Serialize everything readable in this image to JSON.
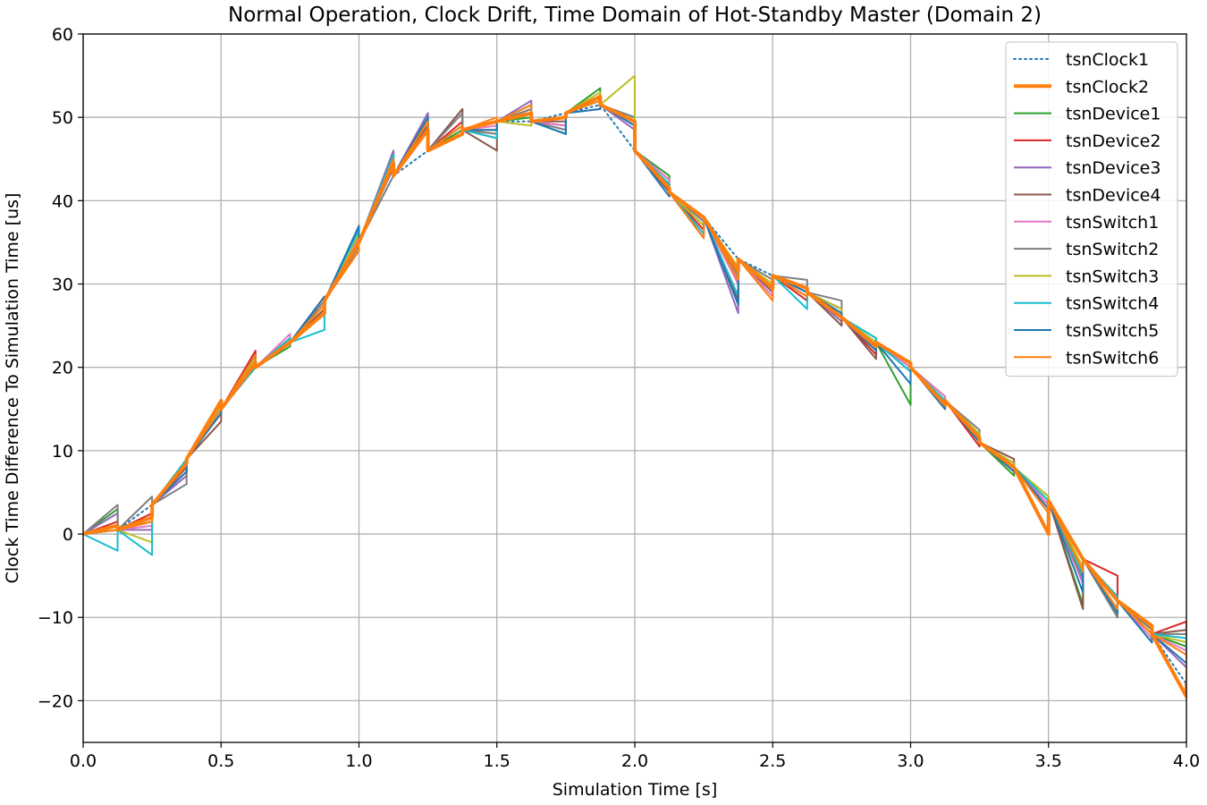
{
  "chart_data": {
    "type": "line",
    "title": "Normal Operation, Clock Drift, Time Domain of Hot-Standby Master (Domain 2)",
    "xlabel": "Simulation Time [s]",
    "ylabel": "Clock Time Difference To Simulation Time [us]",
    "xlim": [
      0.0,
      4.0
    ],
    "ylim": [
      -25,
      60
    ],
    "xticks": [
      "0.0",
      "0.5",
      "1.0",
      "1.5",
      "2.0",
      "2.5",
      "3.0",
      "3.5",
      "4.0"
    ],
    "yticks": [
      "−20",
      "−10",
      "0",
      "10",
      "20",
      "30",
      "40",
      "50",
      "60"
    ],
    "grid": true,
    "legend_position": "top-right",
    "baseline": {
      "x": [
        0.0,
        0.125,
        0.25,
        0.375,
        0.5,
        0.625,
        0.75,
        0.875,
        1.0,
        1.125,
        1.25,
        1.375,
        1.5,
        1.625,
        1.75,
        1.875,
        2.0,
        2.125,
        2.25,
        2.375,
        2.5,
        2.625,
        2.75,
        2.875,
        3.0,
        3.125,
        3.25,
        3.375,
        3.5,
        3.625,
        3.75,
        3.875,
        4.0
      ],
      "y": [
        0,
        0.5,
        3.5,
        9,
        15,
        20,
        23,
        28,
        35,
        43,
        46,
        48.5,
        49.5,
        49.5,
        50.5,
        51.5,
        46,
        41,
        38,
        33,
        31,
        29,
        26,
        23,
        20,
        16,
        11,
        8,
        4,
        -3,
        -8,
        -12,
        -18
      ]
    },
    "series": [
      {
        "name": "tsnClock1",
        "color": "#1f77b4",
        "style": "dotted",
        "width": 2.0,
        "y": [
          0,
          0.5,
          3.5,
          9,
          15,
          20,
          23,
          28,
          35,
          43,
          46,
          48.5,
          49.5,
          49.5,
          50.5,
          51.5,
          46,
          41,
          38,
          33,
          31,
          29,
          26,
          23,
          20,
          16,
          11,
          8,
          4,
          -3,
          -8,
          -12,
          -18
        ]
      },
      {
        "name": "tsnClock2",
        "color": "#ff7f0e",
        "style": "solid",
        "width": 4.0,
        "y": [
          0,
          1.0,
          2.0,
          8.5,
          16.0,
          20.5,
          23.0,
          26.5,
          35.0,
          44.5,
          48.5,
          48.0,
          49.5,
          50.5,
          50.0,
          52.5,
          49.5,
          41.5,
          38.0,
          31.5,
          29.5,
          29.5,
          26.0,
          22.5,
          20.5,
          15.5,
          11.5,
          8.0,
          0.0,
          -3.0,
          -8.0,
          -11.0,
          -19.5
        ]
      },
      {
        "name": "tsnDevice1",
        "color": "#2ca02c",
        "style": "solid",
        "width": 2.0,
        "y": [
          0,
          3.0,
          1.5,
          8.5,
          14.5,
          21.5,
          22.5,
          28.0,
          35.0,
          46.0,
          50.5,
          48.5,
          48.0,
          50.0,
          48.0,
          53.5,
          50.0,
          43.0,
          37.0,
          30.5,
          29.5,
          28.5,
          27.0,
          23.5,
          15.5,
          16.5,
          12.0,
          7.0,
          4.5,
          -8.5,
          -9.5,
          -11.5,
          -13.5
        ]
      },
      {
        "name": "tsnDevice2",
        "color": "#d62728",
        "style": "solid",
        "width": 2.0,
        "y": [
          0,
          1.5,
          2.5,
          7.5,
          15.0,
          22.0,
          23.0,
          28.5,
          34.0,
          45.5,
          49.5,
          49.5,
          48.5,
          51.0,
          49.0,
          52.5,
          49.0,
          42.0,
          36.5,
          28.5,
          29.5,
          28.0,
          27.0,
          21.5,
          20.5,
          15.0,
          10.5,
          7.5,
          3.5,
          -4.5,
          -5.0,
          -12.0,
          -10.5
        ]
      },
      {
        "name": "tsnDevice3",
        "color": "#9467bd",
        "style": "solid",
        "width": 2.0,
        "y": [
          0,
          2.5,
          0.5,
          7.0,
          16.0,
          21.0,
          23.5,
          27.5,
          36.0,
          46.0,
          50.5,
          51.0,
          47.5,
          52.0,
          48.5,
          52.5,
          48.5,
          42.5,
          37.5,
          26.5,
          28.5,
          29.0,
          25.5,
          22.5,
          20.0,
          15.5,
          11.0,
          8.5,
          2.5,
          -5.0,
          -9.0,
          -13.0,
          -16.0
        ]
      },
      {
        "name": "tsnDevice4",
        "color": "#8c564b",
        "style": "solid",
        "width": 2.0,
        "y": [
          0,
          1.0,
          1.5,
          8.0,
          13.5,
          20.0,
          23.5,
          27.0,
          35.5,
          44.0,
          49.0,
          51.0,
          46.0,
          51.5,
          49.5,
          52.0,
          49.5,
          41.0,
          36.0,
          28.0,
          29.0,
          29.0,
          25.0,
          21.0,
          20.5,
          16.0,
          12.0,
          9.0,
          3.0,
          -9.0,
          -10.0,
          -11.0,
          -11.5
        ]
      },
      {
        "name": "tsnSwitch1",
        "color": "#e377c2",
        "style": "solid",
        "width": 2.0,
        "y": [
          0,
          1.0,
          1.0,
          7.5,
          15.0,
          20.5,
          24.0,
          26.5,
          35.5,
          44.5,
          49.5,
          49.0,
          49.0,
          50.5,
          49.0,
          51.0,
          49.0,
          42.5,
          37.0,
          30.0,
          28.5,
          28.5,
          26.5,
          23.0,
          20.0,
          16.5,
          11.5,
          8.5,
          3.5,
          -6.0,
          -8.0,
          -12.5,
          -14.0
        ]
      },
      {
        "name": "tsnSwitch2",
        "color": "#7f7f7f",
        "style": "solid",
        "width": 2.0,
        "y": [
          0,
          3.5,
          4.5,
          6.0,
          15.5,
          21.0,
          23.5,
          28.0,
          34.5,
          43.0,
          48.5,
          50.5,
          48.0,
          51.0,
          48.5,
          52.5,
          50.0,
          41.5,
          37.5,
          31.0,
          30.5,
          30.5,
          28.0,
          22.0,
          19.5,
          16.0,
          12.5,
          8.0,
          4.0,
          -5.5,
          -10.0,
          -11.5,
          -12.0
        ]
      },
      {
        "name": "tsnSwitch3",
        "color": "#bcbd22",
        "style": "solid",
        "width": 2.0,
        "y": [
          0,
          0.5,
          -1.0,
          8.5,
          15.5,
          21.0,
          23.0,
          27.5,
          36.0,
          45.0,
          49.5,
          49.0,
          47.5,
          49.0,
          50.0,
          53.0,
          55.0,
          42.0,
          37.0,
          32.0,
          30.0,
          29.5,
          27.0,
          23.0,
          20.5,
          16.0,
          12.0,
          8.5,
          4.5,
          -4.0,
          -9.0,
          -12.0,
          -13.0
        ]
      },
      {
        "name": "tsnSwitch4",
        "color": "#17becf",
        "style": "solid",
        "width": 2.0,
        "y": [
          0,
          -2.0,
          -2.5,
          9.0,
          15.0,
          20.0,
          23.5,
          24.5,
          36.5,
          45.5,
          49.5,
          49.0,
          47.5,
          51.5,
          48.0,
          52.0,
          49.0,
          42.0,
          36.0,
          28.5,
          29.5,
          27.0,
          26.5,
          23.5,
          19.5,
          16.0,
          11.5,
          8.0,
          4.0,
          -5.0,
          -7.5,
          -11.0,
          -12.5
        ]
      },
      {
        "name": "tsnSwitch5",
        "color": "#1f77b4",
        "style": "solid",
        "width": 2.0,
        "y": [
          0,
          0.5,
          2.0,
          7.5,
          14.5,
          21.5,
          23.0,
          28.5,
          37.0,
          44.0,
          50.0,
          49.0,
          48.5,
          50.5,
          48.0,
          51.0,
          49.0,
          40.5,
          35.5,
          27.5,
          29.5,
          29.0,
          26.5,
          22.0,
          18.0,
          15.0,
          11.0,
          7.5,
          3.0,
          -7.0,
          -9.5,
          -13.0,
          -15.5
        ]
      },
      {
        "name": "tsnSwitch6",
        "color": "#ff7f0e",
        "style": "solid",
        "width": 2.0,
        "y": [
          0,
          0.5,
          1.5,
          8.5,
          15.0,
          21.5,
          23.0,
          27.5,
          34.0,
          45.0,
          49.5,
          49.0,
          50.0,
          51.5,
          50.0,
          52.0,
          49.5,
          41.5,
          35.5,
          30.5,
          28.0,
          28.5,
          26.0,
          22.5,
          20.5,
          15.5,
          11.5,
          8.0,
          2.5,
          -4.5,
          -9.0,
          -12.0,
          -14.5
        ]
      }
    ]
  }
}
